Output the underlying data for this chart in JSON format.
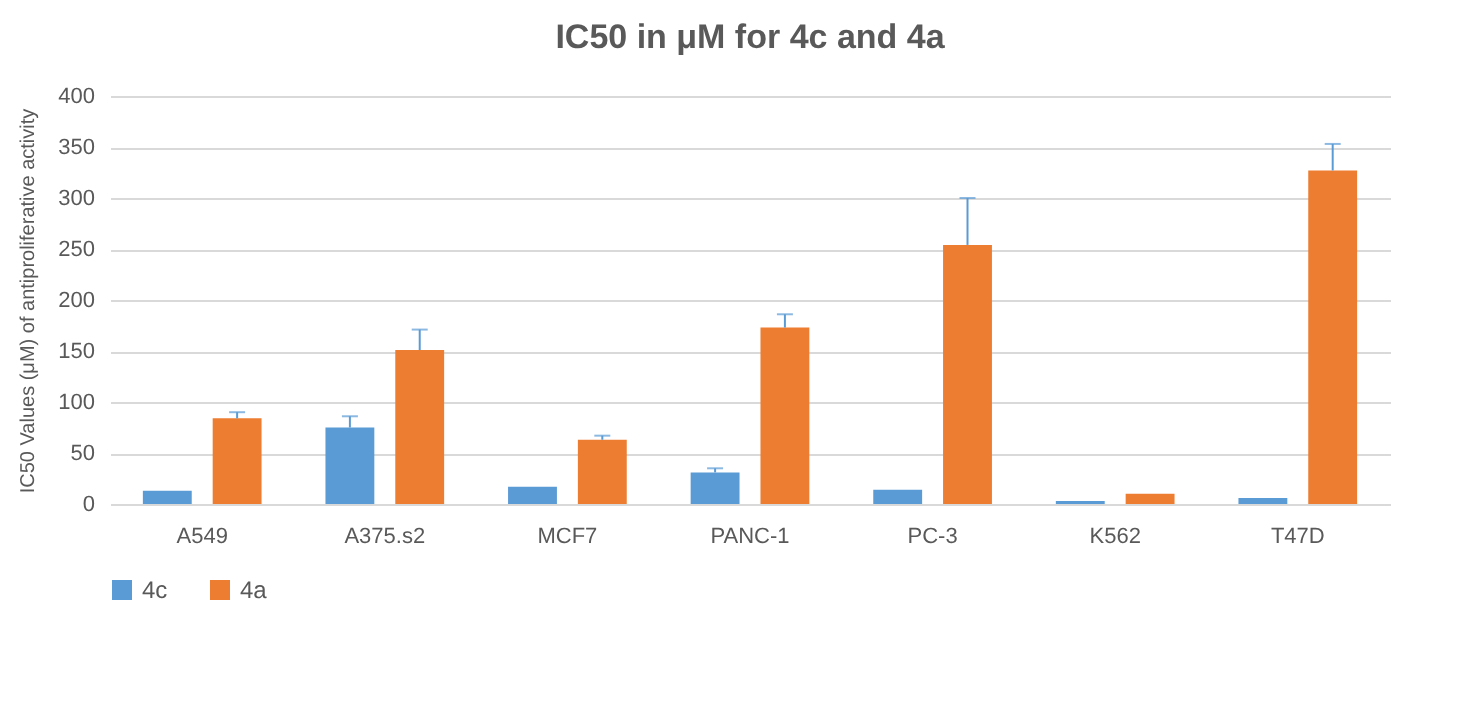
{
  "chart_data": {
    "type": "bar",
    "title": "IC50 in  μM for 4c and 4a",
    "ylabel": "IC50 Values (μM) of antiproliferative activity",
    "categories": [
      "A549",
      "A375.s2",
      "MCF7",
      "PANC-1",
      "PC-3",
      "K562",
      "T47D"
    ],
    "series": [
      {
        "name": "4c",
        "color": "#5b9bd5",
        "values": [
          13,
          75,
          17,
          31,
          14,
          3,
          6
        ],
        "errors": [
          null,
          [
            75,
            86
          ],
          null,
          [
            31,
            35
          ],
          null,
          null,
          null
        ]
      },
      {
        "name": "4a",
        "color": "#ed7d31",
        "values": [
          84,
          151,
          63,
          173,
          254,
          10,
          327
        ],
        "errors": [
          [
            84,
            90
          ],
          [
            151,
            171
          ],
          [
            63,
            67
          ],
          [
            173,
            186
          ],
          [
            254,
            300
          ],
          null,
          [
            327,
            353
          ]
        ]
      }
    ],
    "ylim": [
      0,
      400
    ],
    "yticks": [
      0,
      50,
      100,
      150,
      200,
      250,
      300,
      350,
      400
    ],
    "grid": "y",
    "legend": "bottom"
  }
}
